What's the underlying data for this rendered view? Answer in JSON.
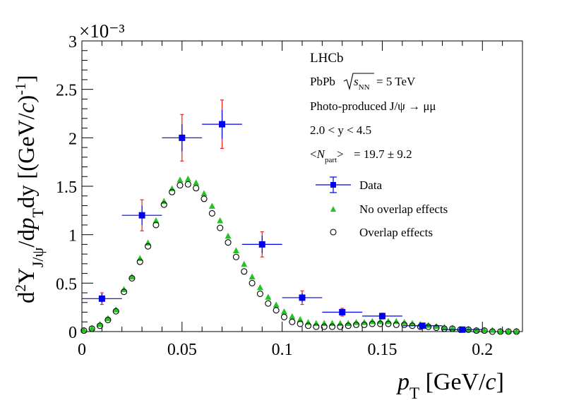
{
  "chart_data": {
    "type": "scatter",
    "experiment": "LHCb",
    "info_lines": {
      "system_label": "PbPb",
      "energy_label": "= 5 TeV",
      "process": "Photo-produced J/ψ → μμ",
      "rapidity": "2.0 < y < 4.5",
      "npart_value": "= 19.7 ± 9.2"
    },
    "xlabel": "p_T [GeV/c]",
    "ylabel": "d²Y_J/ψ/dp_T dy [(GeV/c)⁻¹]",
    "y_multiplier": "×10⁻³",
    "xlim": [
      0,
      0.22
    ],
    "ylim": [
      0,
      3
    ],
    "x_ticks": [
      "0",
      "0.05",
      "0.1",
      "0.15",
      "0.2"
    ],
    "y_ticks": [
      "0",
      "0.5",
      "1",
      "1.5",
      "2",
      "2.5",
      "3"
    ],
    "legend": {
      "position": "top-right",
      "entries": [
        "Data",
        "No overlap effects",
        "Overlap effects"
      ]
    },
    "series": [
      {
        "name": "Data",
        "marker": "square",
        "color": "#0000ee",
        "syst_color": "#e8201e",
        "points": [
          {
            "x": 0.01,
            "xerr": 0.01,
            "y": 0.34,
            "stat": 0.05,
            "syst": 0.06
          },
          {
            "x": 0.03,
            "xerr": 0.01,
            "y": 1.2,
            "stat": 0.1,
            "syst": 0.16
          },
          {
            "x": 0.05,
            "xerr": 0.01,
            "y": 2.0,
            "stat": 0.14,
            "syst": 0.24
          },
          {
            "x": 0.07,
            "xerr": 0.01,
            "y": 2.14,
            "stat": 0.15,
            "syst": 0.25
          },
          {
            "x": 0.09,
            "xerr": 0.01,
            "y": 0.9,
            "stat": 0.09,
            "syst": 0.13
          },
          {
            "x": 0.11,
            "xerr": 0.01,
            "y": 0.35,
            "stat": 0.05,
            "syst": 0.07
          },
          {
            "x": 0.13,
            "xerr": 0.01,
            "y": 0.2,
            "stat": 0.03,
            "syst": 0.04
          },
          {
            "x": 0.15,
            "xerr": 0.01,
            "y": 0.16,
            "stat": 0.025,
            "syst": 0.03
          },
          {
            "x": 0.17,
            "xerr": 0.01,
            "y": 0.06,
            "stat": 0.015,
            "syst": 0.02
          },
          {
            "x": 0.19,
            "xerr": 0.01,
            "y": 0.02,
            "stat": 0.01,
            "syst": 0.01
          }
        ]
      },
      {
        "name": "No overlap effects",
        "marker": "triangle",
        "color": "#22c422",
        "x": [
          0.001,
          0.005,
          0.009,
          0.013,
          0.017,
          0.021,
          0.025,
          0.029,
          0.033,
          0.037,
          0.041,
          0.045,
          0.049,
          0.053,
          0.057,
          0.061,
          0.065,
          0.069,
          0.073,
          0.077,
          0.081,
          0.085,
          0.089,
          0.093,
          0.097,
          0.101,
          0.105,
          0.109,
          0.113,
          0.117,
          0.121,
          0.125,
          0.129,
          0.133,
          0.137,
          0.141,
          0.145,
          0.149,
          0.153,
          0.157,
          0.161,
          0.165,
          0.169,
          0.173,
          0.177,
          0.181,
          0.185,
          0.189,
          0.193,
          0.197,
          0.201,
          0.205,
          0.209,
          0.213,
          0.217
        ],
        "y": [
          0.01,
          0.03,
          0.07,
          0.13,
          0.22,
          0.43,
          0.56,
          0.75,
          0.91,
          1.14,
          1.34,
          1.47,
          1.56,
          1.57,
          1.53,
          1.42,
          1.29,
          1.14,
          0.98,
          0.83,
          0.69,
          0.56,
          0.45,
          0.35,
          0.27,
          0.2,
          0.15,
          0.12,
          0.09,
          0.08,
          0.08,
          0.08,
          0.08,
          0.08,
          0.09,
          0.09,
          0.1,
          0.1,
          0.1,
          0.1,
          0.09,
          0.08,
          0.07,
          0.06,
          0.05,
          0.04,
          0.03,
          0.02,
          0.02,
          0.01,
          0.01,
          0.01,
          0.0,
          0.0,
          0.0
        ]
      },
      {
        "name": "Overlap effects",
        "marker": "open-circle",
        "color": "#000000",
        "x": [
          0.001,
          0.005,
          0.009,
          0.013,
          0.017,
          0.021,
          0.025,
          0.029,
          0.033,
          0.037,
          0.041,
          0.045,
          0.049,
          0.053,
          0.057,
          0.061,
          0.065,
          0.069,
          0.073,
          0.077,
          0.081,
          0.085,
          0.089,
          0.093,
          0.097,
          0.101,
          0.105,
          0.109,
          0.113,
          0.117,
          0.121,
          0.125,
          0.129,
          0.133,
          0.137,
          0.141,
          0.145,
          0.149,
          0.153,
          0.157,
          0.161,
          0.165,
          0.169,
          0.173,
          0.177,
          0.181,
          0.185,
          0.189,
          0.193,
          0.197,
          0.201,
          0.205,
          0.209,
          0.213,
          0.217
        ],
        "y": [
          0.01,
          0.03,
          0.06,
          0.12,
          0.21,
          0.41,
          0.55,
          0.72,
          0.88,
          1.1,
          1.31,
          1.44,
          1.51,
          1.52,
          1.48,
          1.37,
          1.22,
          1.07,
          0.92,
          0.77,
          0.62,
          0.5,
          0.39,
          0.29,
          0.22,
          0.15,
          0.1,
          0.08,
          0.06,
          0.05,
          0.05,
          0.05,
          0.05,
          0.06,
          0.07,
          0.07,
          0.08,
          0.08,
          0.08,
          0.07,
          0.07,
          0.06,
          0.05,
          0.05,
          0.04,
          0.03,
          0.03,
          0.02,
          0.02,
          0.01,
          0.01,
          0.0,
          0.0,
          0.0,
          0.0
        ]
      }
    ]
  }
}
